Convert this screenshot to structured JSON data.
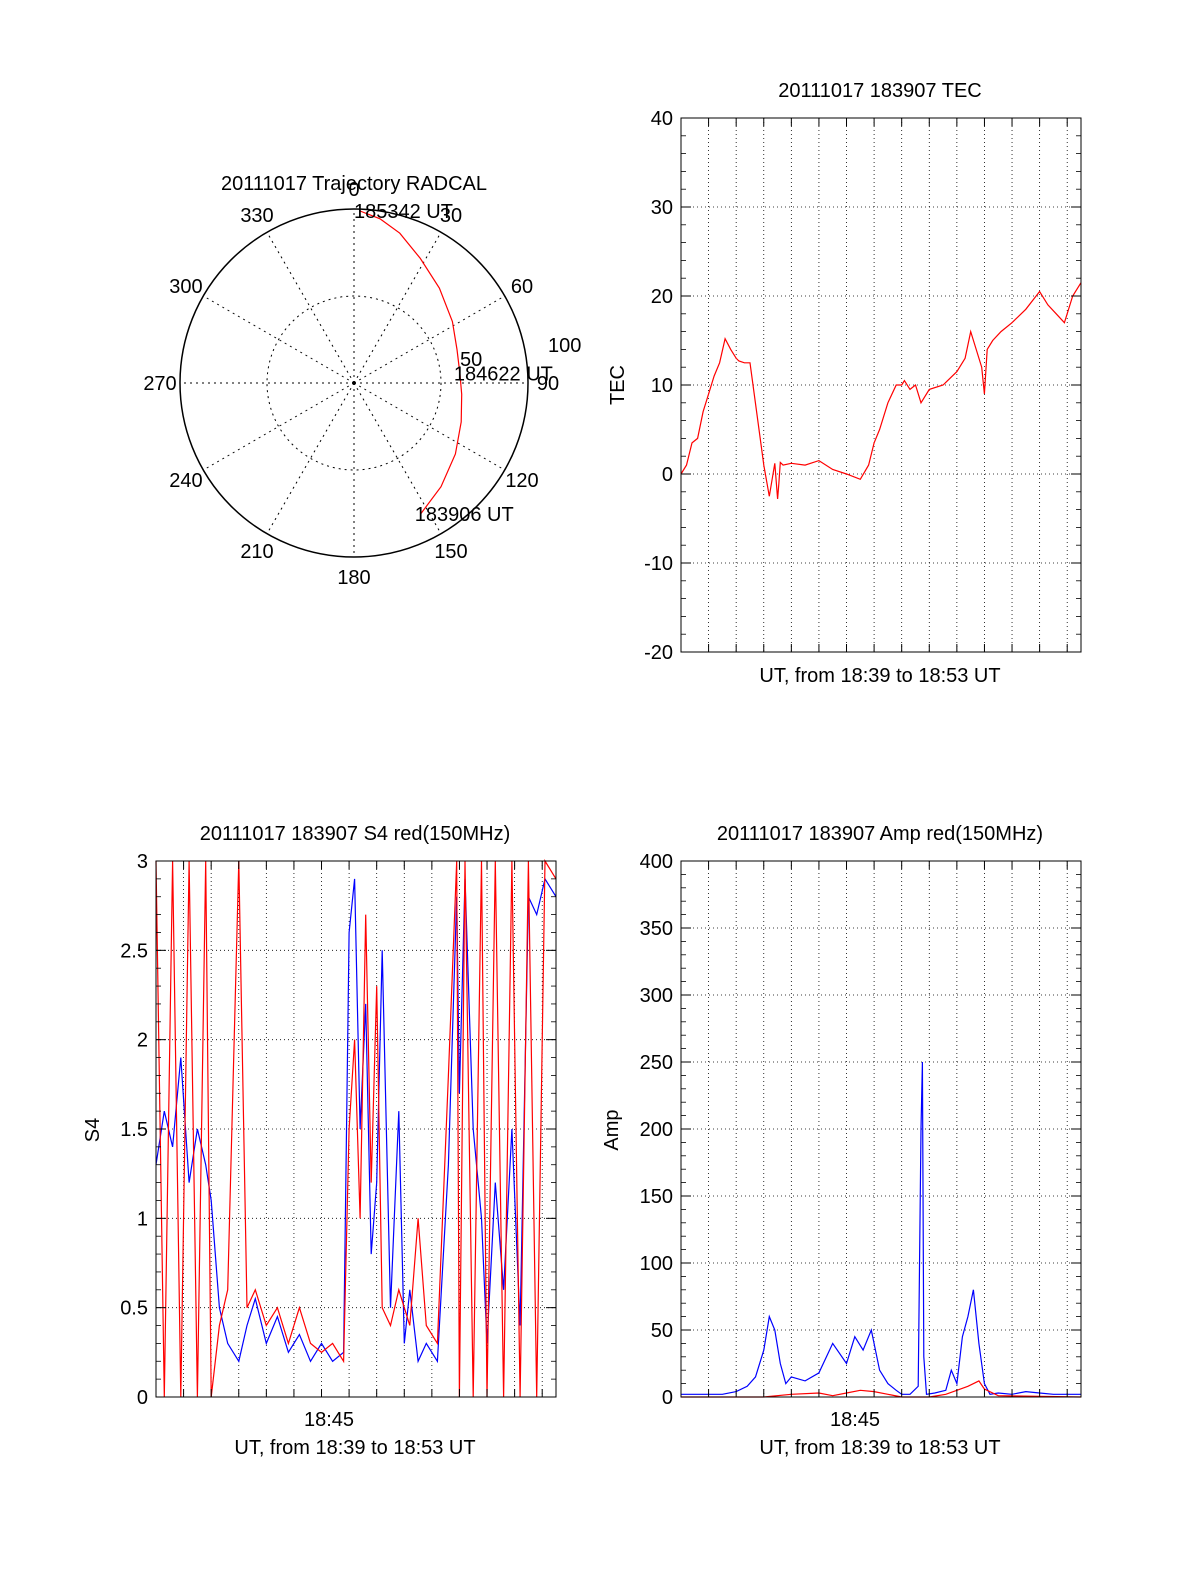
{
  "colors": {
    "red": "#ff0000",
    "blue": "#0000ff",
    "axis": "#000000",
    "grid": "#000000"
  },
  "chart_data": [
    {
      "type": "polar",
      "title": "20111017 Trajectory RADCAL",
      "angle_ticks": [
        "0",
        "30",
        "60",
        "90",
        "120",
        "150",
        "180",
        "210",
        "240",
        "270",
        "300",
        "330"
      ],
      "radius_ticks": [
        "50",
        "100"
      ],
      "track": {
        "points": [
          {
            "az": 153,
            "el": 14
          },
          {
            "az": 140,
            "el": 20
          },
          {
            "az": 125,
            "el": 26
          },
          {
            "az": 110,
            "el": 31
          },
          {
            "az": 96,
            "el": 34
          },
          {
            "az": 85,
            "el": 35
          },
          {
            "az": 72,
            "el": 34
          },
          {
            "az": 58,
            "el": 30
          },
          {
            "az": 42,
            "el": 24
          },
          {
            "az": 28,
            "el": 17
          },
          {
            "az": 17,
            "el": 9
          },
          {
            "az": 9,
            "el": 4
          },
          {
            "az": 2,
            "el": 1
          }
        ],
        "labels": [
          {
            "text": "183906 UT",
            "az": 153,
            "el": 14
          },
          {
            "text": "184622 UT",
            "az": 85,
            "el": 35
          },
          {
            "text": "185342 UT",
            "az": 2,
            "el": 1
          }
        ]
      }
    },
    {
      "type": "line",
      "title": "20111017 183907 TEC",
      "xlabel": "UT, from 18:39 to 18:53 UT",
      "ylabel": "TEC",
      "xlim": [
        0,
        14.5
      ],
      "ylim": [
        -20,
        40
      ],
      "yticks": [
        "-20",
        "-10",
        "0",
        "10",
        "20",
        "30",
        "40"
      ],
      "grid": true,
      "series": [
        {
          "color": "red",
          "x": [
            0,
            0.2,
            0.4,
            0.6,
            0.8,
            1.0,
            1.2,
            1.4,
            1.6,
            1.8,
            2.0,
            2.1,
            2.3,
            2.5,
            3.0,
            3.2,
            3.4,
            3.5,
            3.55,
            3.6,
            3.7,
            4.0,
            4.5,
            5.0,
            5.5,
            6.0,
            6.5,
            6.8,
            7.0,
            7.2,
            7.5,
            7.8,
            8.0,
            8.1,
            8.3,
            8.5,
            8.7,
            9.0,
            9.5,
            10.0,
            10.3,
            10.5,
            10.9,
            11.0,
            11.1,
            11.3,
            11.6,
            12.0,
            12.5,
            13.0,
            13.3,
            13.6,
            13.9,
            14.2,
            14.5
          ],
          "y": [
            0,
            1.0,
            3.5,
            4.0,
            7.0,
            9.0,
            11.0,
            12.5,
            15.2,
            14.0,
            13.0,
            12.7,
            12.5,
            12.5,
            1.0,
            -2.5,
            1.2,
            -2.8,
            -1.0,
            1.3,
            1.0,
            1.2,
            1.0,
            1.5,
            0.5,
            0.0,
            -0.6,
            1.0,
            3.5,
            5.0,
            8.0,
            10.0,
            10.0,
            10.5,
            9.5,
            10.0,
            8.0,
            9.5,
            10.0,
            11.5,
            13.0,
            16.0,
            12.0,
            9.0,
            14.0,
            15.0,
            16.0,
            17.0,
            18.5,
            20.5,
            19.0,
            18.0,
            17.0,
            20.0,
            21.5
          ]
        }
      ]
    },
    {
      "type": "line",
      "title": "20111017 183907 S4 red(150MHz)",
      "xlabel": "UT, from 18:39 to 18:53 UT",
      "ylabel": "S4",
      "xlim": [
        0,
        14.5
      ],
      "ylim": [
        0,
        3
      ],
      "yticks": [
        "0",
        "0.5",
        "1",
        "1.5",
        "2",
        "2.5",
        "3"
      ],
      "xticks": [
        {
          "value": 6.5,
          "label": "18:45"
        }
      ],
      "grid": true,
      "series": [
        {
          "color": "blue",
          "x": [
            0,
            0.3,
            0.6,
            0.9,
            1.2,
            1.5,
            1.8,
            2.0,
            2.3,
            2.6,
            3.0,
            3.3,
            3.6,
            4.0,
            4.4,
            4.8,
            5.2,
            5.6,
            6.0,
            6.4,
            6.8,
            7.0,
            7.2,
            7.4,
            7.6,
            7.8,
            8.0,
            8.2,
            8.5,
            8.8,
            9.0,
            9.2,
            9.5,
            9.8,
            10.2,
            10.6,
            10.9,
            11.0,
            11.2,
            11.5,
            11.8,
            12.0,
            12.3,
            12.6,
            12.9,
            13.2,
            13.5,
            13.8,
            14.1,
            14.5
          ],
          "y": [
            1.3,
            1.6,
            1.4,
            1.9,
            1.2,
            1.5,
            1.3,
            1.1,
            0.5,
            0.3,
            0.2,
            0.4,
            0.55,
            0.3,
            0.45,
            0.25,
            0.35,
            0.2,
            0.3,
            0.2,
            0.25,
            2.6,
            2.9,
            1.5,
            2.2,
            0.8,
            1.2,
            2.5,
            0.5,
            1.6,
            0.3,
            0.6,
            0.2,
            0.3,
            0.2,
            1.3,
            2.8,
            1.7,
            2.9,
            1.5,
            1.0,
            0.3,
            1.2,
            0.6,
            1.5,
            0.4,
            2.8,
            2.7,
            2.9,
            2.8
          ]
        },
        {
          "color": "red",
          "x": [
            0,
            0.3,
            0.6,
            0.9,
            1.2,
            1.5,
            1.8,
            2.0,
            2.3,
            2.6,
            3.0,
            3.3,
            3.6,
            4.0,
            4.4,
            4.8,
            5.2,
            5.6,
            6.0,
            6.4,
            6.8,
            7.0,
            7.2,
            7.4,
            7.6,
            7.8,
            8.0,
            8.2,
            8.5,
            8.8,
            9.0,
            9.2,
            9.5,
            9.8,
            10.2,
            10.6,
            10.9,
            11.0,
            11.2,
            11.5,
            11.8,
            12.0,
            12.3,
            12.6,
            12.9,
            13.2,
            13.5,
            13.8,
            14.1,
            14.5
          ],
          "y": [
            3.0,
            0.0,
            3.0,
            0.0,
            3.0,
            0.0,
            3.0,
            0.0,
            0.4,
            0.6,
            3.0,
            0.5,
            0.6,
            0.4,
            0.5,
            0.3,
            0.5,
            0.3,
            0.25,
            0.3,
            0.2,
            1.5,
            2.0,
            1.0,
            2.7,
            1.2,
            2.3,
            0.5,
            0.4,
            0.6,
            0.5,
            0.4,
            1.0,
            0.4,
            0.3,
            1.8,
            3.0,
            0.0,
            3.0,
            0.0,
            3.0,
            0.0,
            3.0,
            0.0,
            3.0,
            0.0,
            3.0,
            0.0,
            3.0,
            2.9
          ]
        }
      ]
    },
    {
      "type": "line",
      "title": "20111017 183907 Amp red(150MHz)",
      "xlabel": "UT, from 18:39 to 18:53 UT",
      "ylabel": "Amp",
      "xlim": [
        0,
        14.5
      ],
      "ylim": [
        0,
        400
      ],
      "yticks": [
        "0",
        "50",
        "100",
        "150",
        "200",
        "250",
        "300",
        "350",
        "400"
      ],
      "xticks": [
        {
          "value": 6.5,
          "label": "18:45"
        }
      ],
      "grid": true,
      "series": [
        {
          "color": "blue",
          "x": [
            0,
            1.5,
            2.0,
            2.4,
            2.7,
            3.0,
            3.2,
            3.4,
            3.6,
            3.8,
            4.0,
            4.5,
            5.0,
            5.5,
            6.0,
            6.3,
            6.6,
            6.9,
            7.2,
            7.5,
            7.8,
            8.0,
            8.3,
            8.6,
            8.7,
            8.75,
            8.8,
            8.9,
            9.2,
            9.6,
            9.8,
            10.0,
            10.2,
            10.4,
            10.6,
            10.8,
            11.0,
            11.2,
            11.5,
            12.0,
            12.5,
            13.0,
            13.5,
            14.0,
            14.5
          ],
          "y": [
            2,
            2,
            4,
            8,
            15,
            35,
            60,
            50,
            25,
            10,
            15,
            12,
            18,
            40,
            25,
            45,
            35,
            50,
            20,
            10,
            5,
            2,
            2,
            8,
            200,
            250,
            30,
            2,
            3,
            5,
            20,
            10,
            45,
            60,
            80,
            40,
            10,
            2,
            3,
            2,
            4,
            3,
            2,
            2,
            2
          ]
        },
        {
          "color": "red",
          "x": [
            0,
            3.0,
            4.0,
            5.0,
            5.5,
            6.0,
            6.5,
            7.0,
            7.5,
            8.0,
            9.0,
            9.6,
            10.0,
            10.4,
            10.8,
            11.0,
            11.5,
            14.5
          ],
          "y": [
            0,
            0,
            2,
            3,
            1,
            3,
            5,
            4,
            2,
            0,
            0,
            2,
            5,
            8,
            12,
            6,
            1,
            0
          ]
        }
      ]
    }
  ]
}
